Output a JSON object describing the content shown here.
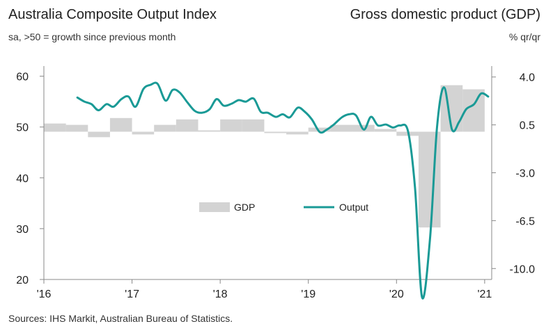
{
  "header": {
    "title_left": "Australia Composite Output Index",
    "subtitle_left": "sa, >50 = growth since previous month",
    "title_right": "Gross domestic product (GDP)",
    "subtitle_right": "% qr/qr"
  },
  "footer": {
    "source": "Sources: IHS Markit, Australian Bureau of Statistics."
  },
  "colors": {
    "line": "#1a9a96",
    "bar": "#d3d3d3",
    "axis": "#888888"
  },
  "chart_data": {
    "type": "bar+line",
    "left_axis": {
      "ylim": [
        20,
        62
      ],
      "ticks": [
        20,
        30,
        40,
        50,
        60
      ],
      "tick_labels": [
        "20",
        "30",
        "40",
        "50",
        "60"
      ]
    },
    "right_axis": {
      "ylim": [
        -10.8,
        4.8
      ],
      "ticks": [
        4.0,
        0.5,
        -3.0,
        -6.5,
        -10.0
      ],
      "tick_labels": [
        "4.0",
        "0.5",
        "-3.0",
        "-6.5",
        "-10.0"
      ]
    },
    "x_axis": {
      "xlim": [
        2016.0,
        2021.08
      ],
      "ticks": [
        2016,
        2017,
        2018,
        2019,
        2020,
        2021
      ],
      "tick_labels": [
        "'16",
        "'17",
        "'18",
        "'19",
        "'20",
        "'21"
      ]
    },
    "legend": [
      {
        "name": "GDP",
        "kind": "bar"
      },
      {
        "name": "Output",
        "kind": "line"
      }
    ],
    "series": [
      {
        "name": "GDP",
        "type": "bar",
        "axis": "right",
        "periods": [
          [
            2016.0,
            2016.25
          ],
          [
            2016.25,
            2016.5
          ],
          [
            2016.5,
            2016.75
          ],
          [
            2016.75,
            2017.0
          ],
          [
            2017.0,
            2017.25
          ],
          [
            2017.25,
            2017.5
          ],
          [
            2017.5,
            2017.75
          ],
          [
            2017.75,
            2018.0
          ],
          [
            2018.0,
            2018.25
          ],
          [
            2018.25,
            2018.5
          ],
          [
            2018.5,
            2018.75
          ],
          [
            2018.75,
            2019.0
          ],
          [
            2019.0,
            2019.25
          ],
          [
            2019.25,
            2019.5
          ],
          [
            2019.5,
            2019.75
          ],
          [
            2019.75,
            2020.0
          ],
          [
            2020.0,
            2020.25
          ],
          [
            2020.25,
            2020.5
          ],
          [
            2020.5,
            2020.75
          ],
          [
            2020.75,
            2021.0
          ]
        ],
        "values": [
          0.6,
          0.5,
          -0.4,
          1.0,
          -0.2,
          0.5,
          0.9,
          0.1,
          0.9,
          0.9,
          -0.1,
          -0.2,
          0.3,
          0.5,
          0.5,
          0.2,
          -0.3,
          -7.0,
          3.4,
          3.1
        ]
      },
      {
        "name": "Output",
        "type": "line",
        "axis": "left",
        "x": [
          2016.38,
          2016.46,
          2016.54,
          2016.62,
          2016.71,
          2016.79,
          2016.88,
          2016.96,
          2017.04,
          2017.13,
          2017.21,
          2017.29,
          2017.38,
          2017.46,
          2017.54,
          2017.63,
          2017.71,
          2017.79,
          2017.88,
          2017.96,
          2018.04,
          2018.13,
          2018.21,
          2018.29,
          2018.38,
          2018.46,
          2018.54,
          2018.63,
          2018.71,
          2018.79,
          2018.88,
          2018.96,
          2019.04,
          2019.13,
          2019.21,
          2019.29,
          2019.38,
          2019.46,
          2019.54,
          2019.63,
          2019.71,
          2019.79,
          2019.88,
          2019.96,
          2020.04,
          2020.13,
          2020.21,
          2020.29,
          2020.38,
          2020.46,
          2020.54,
          2020.63,
          2020.71,
          2020.79,
          2020.88,
          2020.96,
          2021.04
        ],
        "values": [
          55.8,
          55.0,
          54.5,
          53.3,
          54.5,
          54.0,
          55.5,
          56.0,
          54.0,
          57.5,
          58.3,
          58.5,
          55.2,
          57.3,
          56.8,
          54.8,
          53.2,
          52.8,
          53.5,
          55.5,
          54.2,
          54.6,
          55.3,
          55.0,
          55.6,
          53.0,
          52.8,
          52.0,
          52.5,
          51.9,
          53.8,
          53.0,
          51.5,
          49.0,
          49.5,
          50.5,
          51.9,
          52.5,
          52.3,
          49.5,
          52.0,
          50.3,
          50.5,
          49.9,
          50.3,
          49.2,
          38.0,
          16.5,
          28.0,
          50.0,
          57.8,
          49.5,
          51.0,
          53.5,
          54.5,
          56.6,
          56.0
        ]
      }
    ]
  }
}
